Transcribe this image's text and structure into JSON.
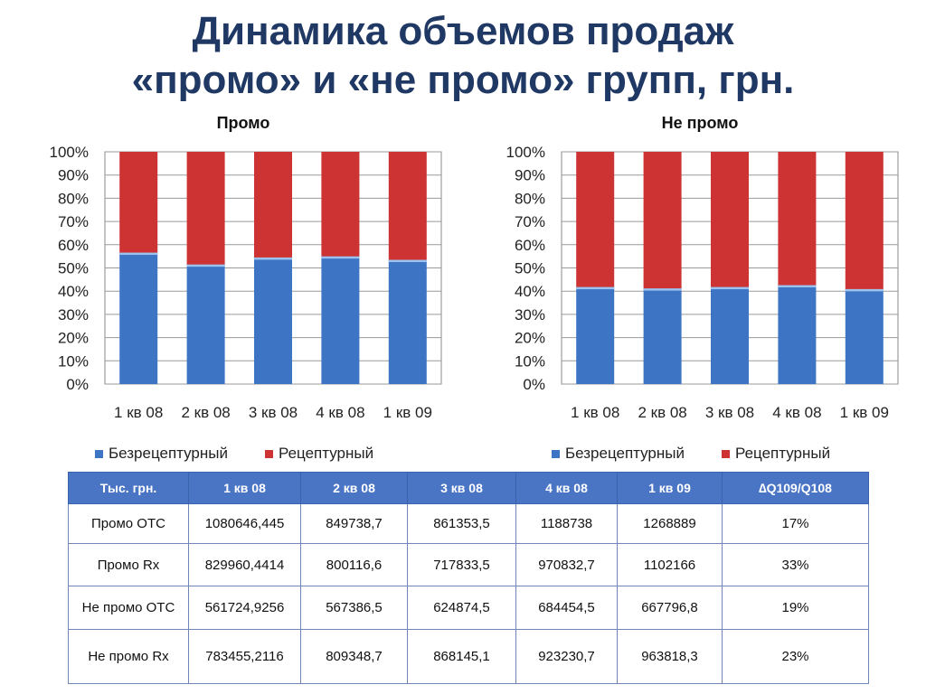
{
  "title_line1": "Динамика объемов продаж",
  "title_line2": "«промо» и «не промо» групп, грн.",
  "colors": {
    "otc": "#3d75c4",
    "rx": "#cc3332",
    "title": "#1f3864",
    "table_header": "#4a74c4"
  },
  "chart_data": [
    {
      "type": "bar",
      "stacked": "percent",
      "title": "Промо",
      "categories": [
        "1 кв 08",
        "2 кв 08",
        "3 кв 08",
        "4 кв 08",
        "1 кв 09"
      ],
      "series": [
        {
          "name": "Безрецептурный",
          "values": [
            56.6,
            51.5,
            54.5,
            55.0,
            53.5
          ]
        },
        {
          "name": "Рецептурный",
          "values": [
            43.4,
            48.5,
            45.5,
            45.0,
            46.5
          ]
        }
      ],
      "yticks": [
        "0%",
        "10%",
        "20%",
        "30%",
        "40%",
        "50%",
        "60%",
        "70%",
        "80%",
        "90%",
        "100%"
      ],
      "ylim": [
        0,
        100
      ],
      "legend": "bottom",
      "grid": true
    },
    {
      "type": "bar",
      "stacked": "percent",
      "title": "Не промо",
      "categories": [
        "1 кв 08",
        "2 кв 08",
        "3 кв 08",
        "4 кв 08",
        "1 кв 09"
      ],
      "series": [
        {
          "name": "Безрецептурный",
          "values": [
            41.8,
            41.2,
            41.8,
            42.6,
            40.9
          ]
        },
        {
          "name": "Рецептурный",
          "values": [
            58.2,
            58.8,
            58.2,
            57.4,
            59.1
          ]
        }
      ],
      "yticks": [
        "0%",
        "10%",
        "20%",
        "30%",
        "40%",
        "50%",
        "60%",
        "70%",
        "80%",
        "90%",
        "100%"
      ],
      "ylim": [
        0,
        100
      ],
      "legend": "bottom",
      "grid": true
    }
  ],
  "table": {
    "headers": [
      "Тыс. грн.",
      "1 кв 08",
      "2 кв 08",
      "3 кв 08",
      "4 кв 08",
      "1 кв 09",
      "∆Q109/Q108"
    ],
    "rows": [
      [
        "Промо ОТС",
        "1080646,445",
        "849738,7",
        "861353,5",
        "1188738",
        "1268889",
        "17%"
      ],
      [
        "Промо Rx",
        "829960,4414",
        "800116,6",
        "717833,5",
        "970832,7",
        "1102166",
        "33%"
      ],
      [
        "Не промо ОТС",
        "561724,9256",
        "567386,5",
        "624874,5",
        "684454,5",
        "667796,8",
        "19%"
      ],
      [
        "Не промо Rx",
        "783455,2116",
        "809348,7",
        "868145,1",
        "923230,7",
        "963818,3",
        "23%"
      ]
    ]
  }
}
